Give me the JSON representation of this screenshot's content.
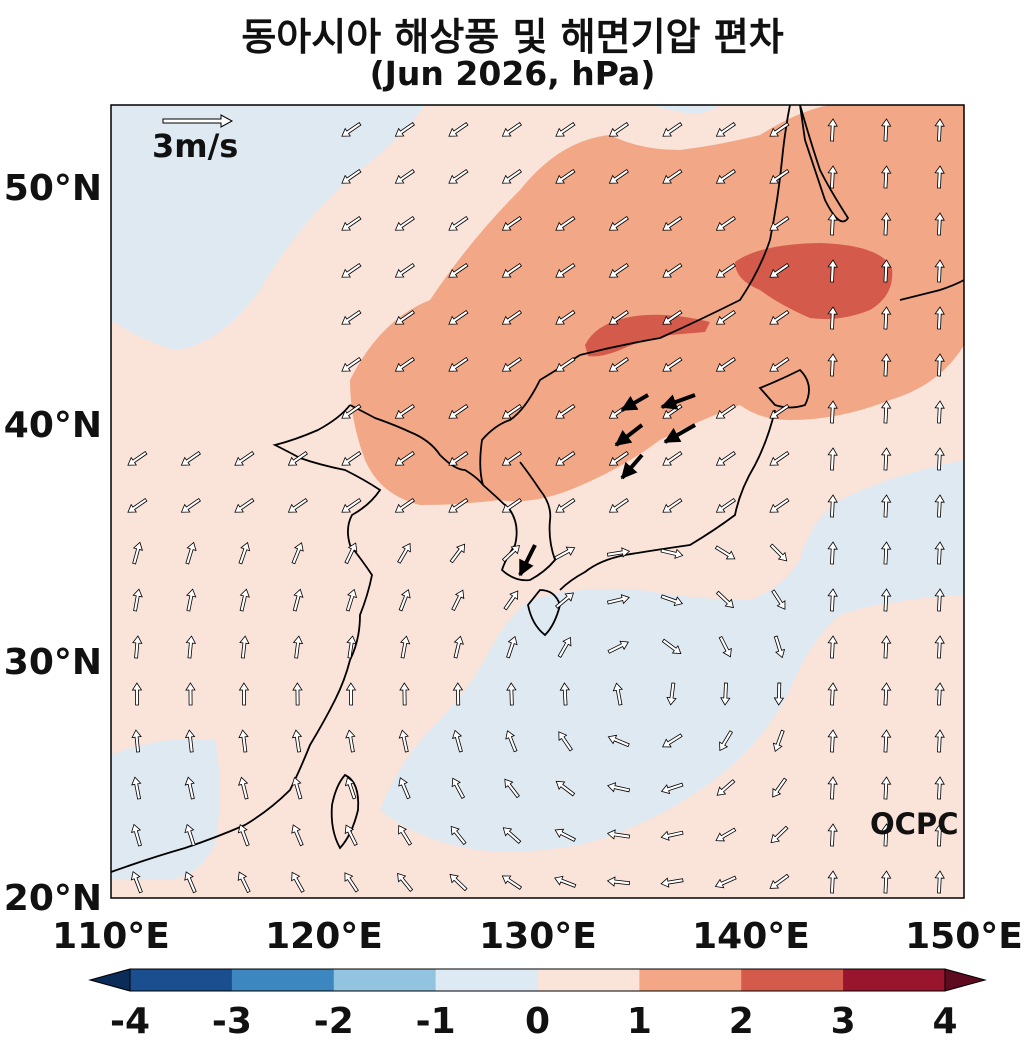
{
  "title": "동아시아 해상풍 및 해면기압 편차",
  "subtitle": "(Jun 2026, hPa)",
  "map": {
    "lon_range": [
      110,
      150
    ],
    "lat_range": [
      20,
      53.5
    ],
    "lon_ticks": [
      "110°E",
      "120°E",
      "130°E",
      "140°E",
      "150°E"
    ],
    "lat_ticks": [
      "20°N",
      "30°N",
      "40°N",
      "50°N"
    ],
    "reference_vector": "3m/s",
    "watermark": "OCPC"
  },
  "colorbar": {
    "labels": [
      "-4",
      "-3",
      "-2",
      "-1",
      "0",
      "1",
      "2",
      "3",
      "4"
    ],
    "colors": [
      "#1a4e8e",
      "#3d87c0",
      "#93c4df",
      "#deeaf3",
      "#fae3d8",
      "#f3a786",
      "#d45a4b",
      "#99152d"
    ],
    "under_color": "#0b2b58",
    "over_color": "#5e0a20"
  },
  "anomaly_colors": {
    "neg_0_1": "#dfe9f2",
    "pos_0_1": "#fae3d8",
    "pos_1_2": "#f2a786",
    "pos_2_3": "#d45a4b"
  }
}
